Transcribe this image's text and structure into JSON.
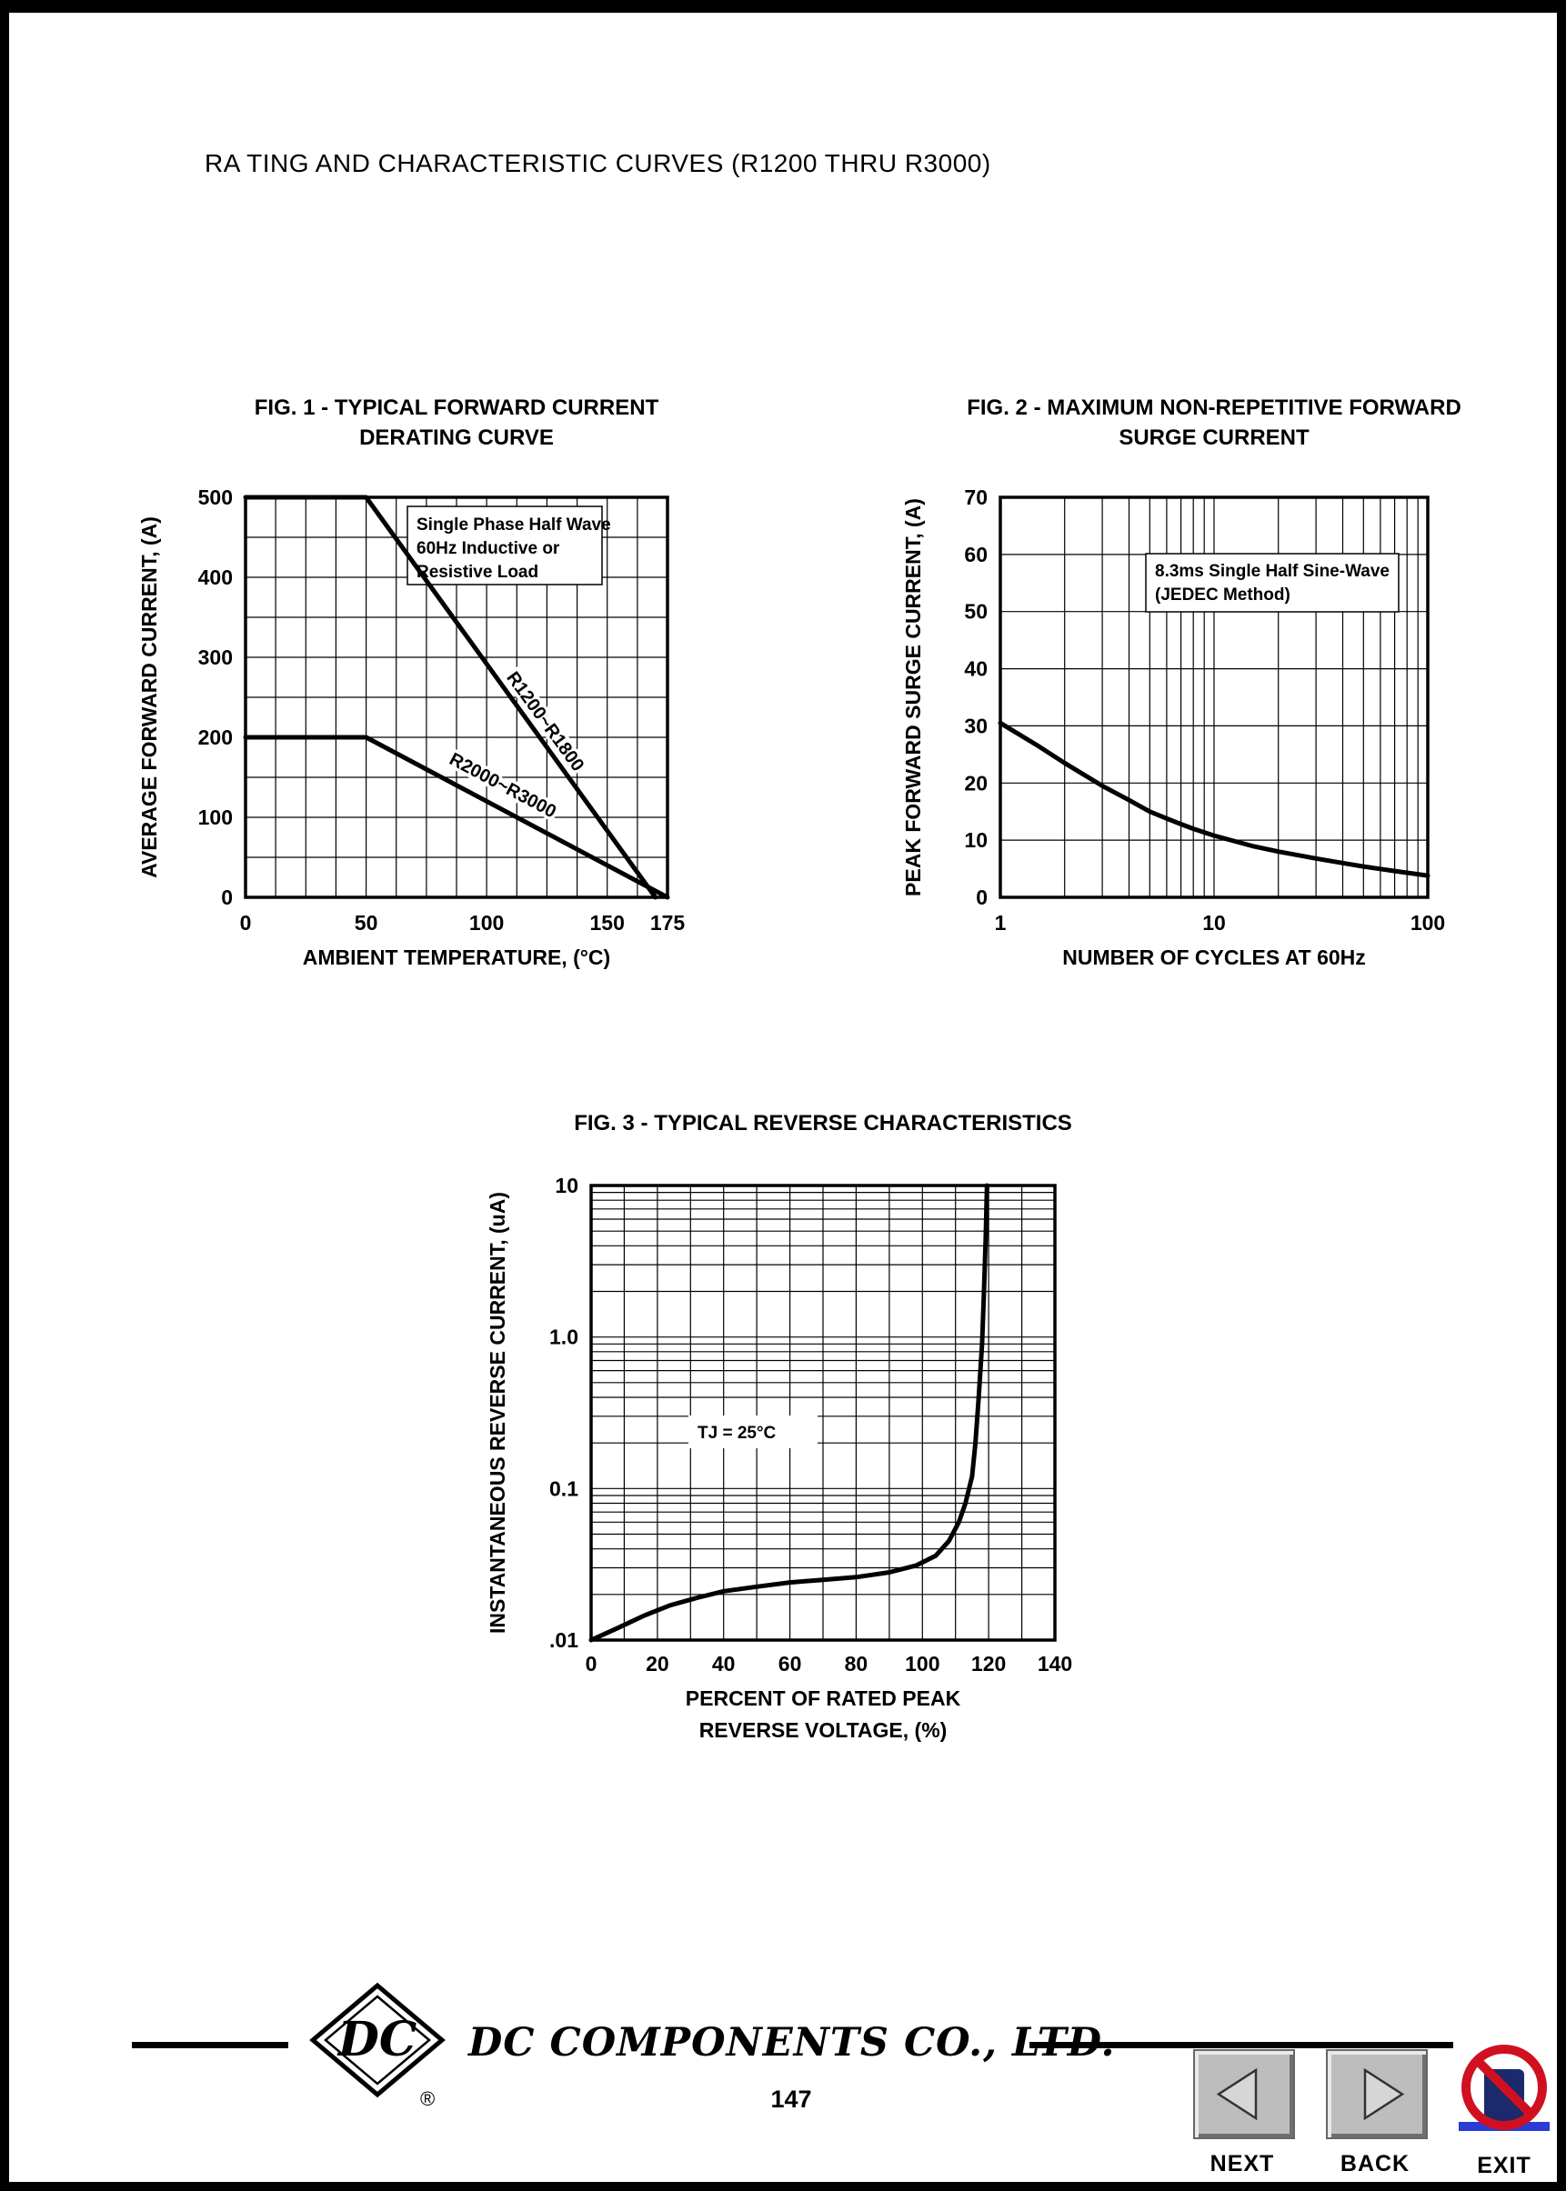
{
  "page": {
    "title": "RA TING AND CHARACTERISTIC CURVES (R1200 THRU R3000)",
    "page_number": "147"
  },
  "footer": {
    "company": "DC COMPONENTS CO., LTD.",
    "logo_text": "DC",
    "registered_mark": "®"
  },
  "nav": {
    "next_label": "NEXT",
    "back_label": "BACK",
    "exit_label": "EXIT"
  },
  "chart_data": [
    {
      "id": "fig1",
      "type": "line",
      "title_lines": [
        "FIG. 1 - TYPICAL FORWARD CURRENT",
        "DERATING CURVE"
      ],
      "xlabel": "AMBIENT TEMPERATURE, (°C)",
      "ylabel": "AVERAGE FORWARD CURRENT, (A)",
      "x_scale": "linear",
      "xlim": [
        0,
        175
      ],
      "x_ticks": [
        0,
        50,
        100,
        150,
        175
      ],
      "x_grid_step": 12.5,
      "y_scale": "linear",
      "ylim": [
        0,
        500
      ],
      "y_ticks": [
        0,
        100,
        200,
        300,
        400,
        500
      ],
      "y_grid_step": 50,
      "grid": true,
      "annotation": "Single Phase Half Wave\n60Hz Inductive or\nResistive Load",
      "series": [
        {
          "name": "R1200~R1800",
          "points": [
            [
              0,
              500
            ],
            [
              50,
              500
            ],
            [
              170,
              0
            ]
          ],
          "label_pos": [
            108,
            275
          ],
          "label_angle": 54
        },
        {
          "name": "R2000~R3000",
          "points": [
            [
              0,
              200
            ],
            [
              50,
              200
            ],
            [
              175,
              0
            ]
          ],
          "label_pos": [
            84,
            168
          ],
          "label_angle": 28
        }
      ]
    },
    {
      "id": "fig2",
      "type": "line",
      "title_lines": [
        "FIG. 2 - MAXIMUM NON-REPETITIVE FORWARD",
        "SURGE CURRENT"
      ],
      "xlabel": "NUMBER OF CYCLES AT 60Hz",
      "ylabel": "PEAK FORWARD SURGE CURRENT, (A)",
      "x_scale": "log",
      "xlim": [
        1,
        100
      ],
      "x_ticks": [
        1,
        10,
        100
      ],
      "y_scale": "linear",
      "ylim": [
        0,
        70
      ],
      "y_ticks": [
        0,
        10,
        20,
        30,
        40,
        50,
        60,
        70
      ],
      "y_grid_step": 10,
      "grid": true,
      "annotation": "8.3ms Single Half Sine-Wave\n(JEDEC Method)",
      "series": [
        {
          "name": "surge-current",
          "points": [
            [
              1,
              30.5
            ],
            [
              1.5,
              26.5
            ],
            [
              2,
              23.5
            ],
            [
              3,
              19.5
            ],
            [
              4,
              17
            ],
            [
              5,
              15
            ],
            [
              6,
              13.8
            ],
            [
              7,
              12.8
            ],
            [
              8,
              12
            ],
            [
              10,
              10.8
            ],
            [
              15,
              9
            ],
            [
              20,
              8
            ],
            [
              30,
              6.8
            ],
            [
              40,
              6
            ],
            [
              50,
              5.4
            ],
            [
              70,
              4.6
            ],
            [
              100,
              3.8
            ]
          ]
        }
      ]
    },
    {
      "id": "fig3",
      "type": "line",
      "title_lines": [
        "FIG. 3 - TYPICAL REVERSE CHARACTERISTICS"
      ],
      "xlabel_lines": [
        "PERCENT OF RATED PEAK",
        "REVERSE VOLTAGE, (%)"
      ],
      "ylabel": "INSTANTANEOUS REVERSE CURRENT, (uA)",
      "x_scale": "linear",
      "xlim": [
        0,
        140
      ],
      "x_ticks": [
        0,
        20,
        40,
        60,
        80,
        100,
        120,
        140
      ],
      "x_grid_step": 10,
      "y_scale": "log",
      "ylim": [
        0.01,
        10
      ],
      "y_ticks": [
        {
          "v": 0.01,
          "label": ".01"
        },
        {
          "v": 0.1,
          "label": "0.1"
        },
        {
          "v": 1,
          "label": "1.0"
        },
        {
          "v": 10,
          "label": "10"
        }
      ],
      "grid": true,
      "annotation": "TJ = 25°C",
      "series": [
        {
          "name": "reverse-leakage",
          "points": [
            [
              0,
              0.01
            ],
            [
              8,
              0.012
            ],
            [
              16,
              0.0145
            ],
            [
              24,
              0.017
            ],
            [
              32,
              0.019
            ],
            [
              40,
              0.021
            ],
            [
              50,
              0.0225
            ],
            [
              60,
              0.024
            ],
            [
              70,
              0.025
            ],
            [
              80,
              0.026
            ],
            [
              90,
              0.028
            ],
            [
              98,
              0.031
            ],
            [
              104,
              0.036
            ],
            [
              108,
              0.045
            ],
            [
              111,
              0.06
            ],
            [
              113,
              0.08
            ],
            [
              115,
              0.12
            ],
            [
              116,
              0.2
            ],
            [
              117,
              0.4
            ],
            [
              118,
              0.9
            ],
            [
              118.6,
              2
            ],
            [
              119.1,
              4.5
            ],
            [
              119.5,
              10
            ]
          ]
        }
      ]
    }
  ]
}
